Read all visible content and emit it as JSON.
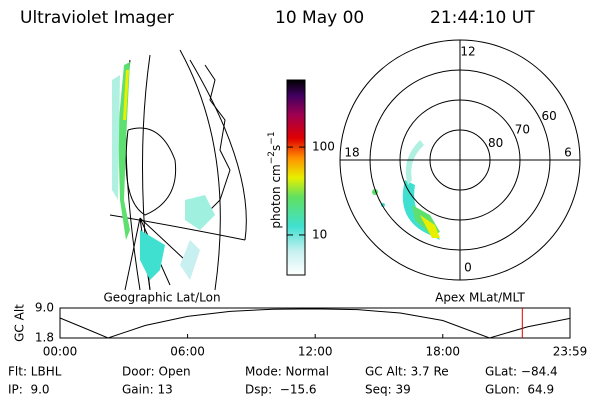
{
  "header": {
    "title": "Ultraviolet Imager",
    "date": "10 May 00",
    "time": "21:44:10 UT"
  },
  "colorbar": {
    "label": "photon cm",
    "exp1": "−2",
    "unit2": "s",
    "exp2": "−1",
    "ticks": [
      10,
      100
    ],
    "lim": [
      3.5,
      580
    ],
    "log": true
  },
  "panels": {
    "left": "Geographic Lat/Lon",
    "right": "Apex MLat/MLT"
  },
  "polar": {
    "lat_lim": [
      90,
      50
    ],
    "ring_labels": [
      80,
      70,
      60
    ],
    "mlt_labels": [
      12,
      6,
      0,
      18
    ]
  },
  "chart_data": {
    "type": "line",
    "ylabel": "GC Alt",
    "color": "#000000",
    "xlim": [
      0,
      23.983
    ],
    "ylim": [
      1.8,
      9.0
    ],
    "yticks": [
      1.8,
      {
        "value": 9.0,
        "label": "9.0"
      }
    ],
    "xticks": [
      {
        "value": 0,
        "label": "00:00"
      },
      {
        "value": 6,
        "label": "06:00"
      },
      {
        "value": 12,
        "label": "12:00"
      },
      {
        "value": 18,
        "label": "18:00"
      },
      {
        "value": 23.983,
        "label": "23:59"
      }
    ],
    "x": [
      0,
      1,
      2.26,
      4,
      6,
      8,
      10,
      12,
      14,
      16,
      18,
      20.2,
      22,
      23.983
    ],
    "values": [
      6.6,
      4.5,
      1.8,
      4.8,
      7.0,
      8.2,
      8.7,
      8.8,
      8.6,
      7.8,
      6.0,
      1.8,
      4.5,
      6.5
    ],
    "marker_time": 21.74,
    "marker_color": "#e00000"
  },
  "info": [
    [
      "Flt: LBHL",
      "Door: Open",
      "Mode: Normal",
      "GC Alt: 3.7 Re",
      "GLat: −84.4"
    ],
    [
      "IP:  9.0",
      "Gain: 13",
      "Dsp:  −15.6",
      "Seq: 39",
      "GLon:  64.9"
    ]
  ]
}
